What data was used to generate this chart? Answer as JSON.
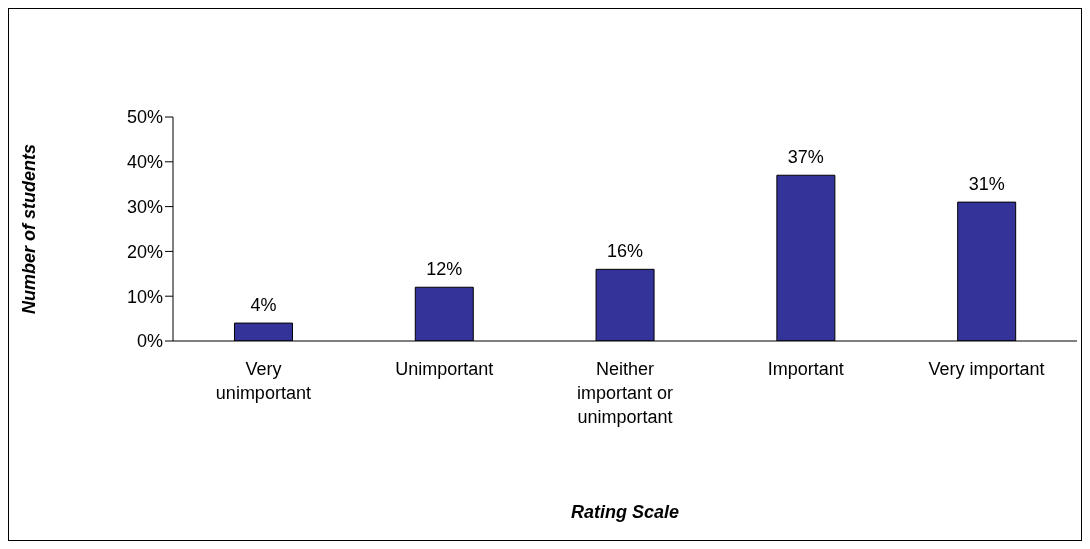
{
  "chart_data": {
    "type": "bar",
    "xlabel": "Rating Scale",
    "ylabel": "Number of students",
    "categories": [
      "Very unimportant",
      "Unimportant",
      "Neither important or unimportant",
      "Important",
      "Very important"
    ],
    "values": [
      4,
      12,
      16,
      37,
      31
    ],
    "value_labels": [
      "4%",
      "12%",
      "16%",
      "37%",
      "31%"
    ],
    "color": "#333399",
    "ylim": [
      0,
      50
    ],
    "yticks": [
      {
        "value": 0,
        "label": "0%"
      },
      {
        "value": 10,
        "label": "10%"
      },
      {
        "value": 20,
        "label": "20%"
      },
      {
        "value": 30,
        "label": "30%"
      },
      {
        "value": 40,
        "label": "40%"
      },
      {
        "value": 50,
        "label": "50%"
      }
    ],
    "grid": false,
    "legend": false
  }
}
